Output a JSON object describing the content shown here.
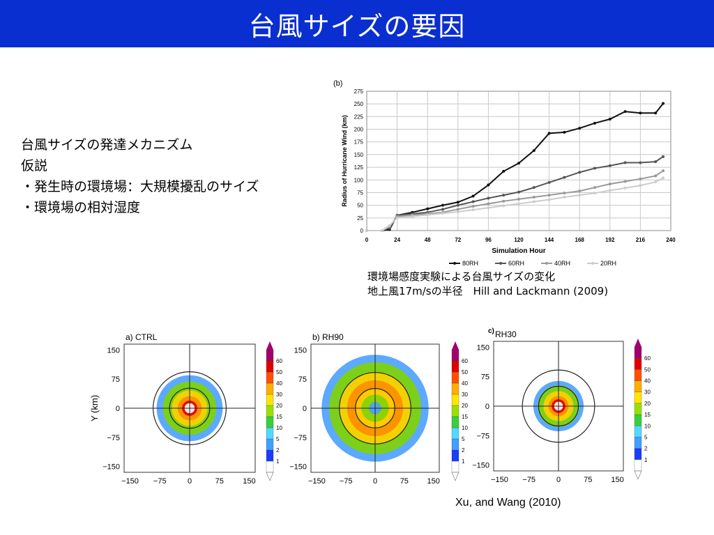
{
  "title": "台風サイズの要因",
  "bullets": [
    "台風サイズの発達メカニズム",
    "仮説",
    "・発生時の環境場：大規模擾乱のサイズ",
    "・環境場の相対湿度"
  ],
  "caption_lines": [
    "環境場感度実験による台風サイズの変化",
    "地上風17m/sの半径　Hill and Lackmann (2009)"
  ],
  "credit": "Xu, and Wang  (2010)",
  "chart_data": [
    {
      "type": "line",
      "panel_label": "(b)",
      "title": "",
      "xlabel": "Simulation Hour",
      "ylabel": "Radius of Hurricane Wind (km)",
      "xlim": [
        0,
        240
      ],
      "ylim": [
        0,
        275
      ],
      "xticks": [
        0,
        24,
        48,
        72,
        96,
        120,
        144,
        168,
        192,
        216,
        240
      ],
      "yticks": [
        0,
        25,
        50,
        75,
        100,
        125,
        150,
        175,
        200,
        225,
        250,
        275
      ],
      "grid": true,
      "legend_position": "bottom",
      "x": [
        0,
        12,
        18,
        24,
        36,
        48,
        60,
        72,
        84,
        96,
        108,
        120,
        132,
        144,
        156,
        168,
        180,
        192,
        204,
        216,
        228,
        234
      ],
      "series": [
        {
          "name": "80RH",
          "color": "#111111",
          "values": [
            0,
            0,
            2,
            30,
            36,
            43,
            50,
            56,
            68,
            90,
            117,
            133,
            158,
            192,
            194,
            202,
            212,
            220,
            235,
            232,
            232,
            251
          ]
        },
        {
          "name": "60RH",
          "color": "#555555",
          "values": [
            0,
            0,
            5,
            30,
            33,
            36,
            42,
            50,
            57,
            64,
            70,
            76,
            85,
            95,
            105,
            115,
            123,
            128,
            134,
            134,
            136,
            146
          ]
        },
        {
          "name": "40RH",
          "color": "#999999",
          "values": [
            0,
            0,
            8,
            28,
            31,
            33,
            36,
            42,
            48,
            53,
            58,
            62,
            66,
            70,
            74,
            78,
            85,
            92,
            97,
            102,
            108,
            118
          ]
        },
        {
          "name": "20RH",
          "color": "#cccccc",
          "values": [
            0,
            0,
            10,
            25,
            28,
            31,
            34,
            37,
            41,
            45,
            49,
            53,
            57,
            61,
            66,
            70,
            74,
            79,
            84,
            89,
            96,
            104
          ]
        }
      ]
    },
    {
      "type": "heatmap",
      "panels": [
        {
          "label": "a)  CTRL",
          "rings": [
            [
              "#ffffff",
              8
            ],
            [
              "#e00000",
              12
            ],
            [
              "#ff8c00",
              19
            ],
            [
              "#ffd000",
              28
            ],
            [
              "#7fd400",
              42
            ],
            [
              "#4aa0ff",
              52
            ]
          ]
        },
        {
          "label": "b)  RH90",
          "rings": [
            [
              "#4aa0ff",
              10
            ],
            [
              "#7fd400",
              22
            ],
            [
              "#ffd000",
              32
            ],
            [
              "#ff8c00",
              45
            ],
            [
              "#ffd000",
              58
            ],
            [
              "#7fd400",
              74
            ],
            [
              "#4aa0ff",
              86
            ]
          ]
        },
        {
          "label": "RH30",
          "panel_mark": "c)",
          "rings": [
            [
              "#ffffff",
              7
            ],
            [
              "#e00000",
              11
            ],
            [
              "#ff8c00",
              16
            ],
            [
              "#ffd000",
              24
            ],
            [
              "#7fd400",
              33
            ],
            [
              "#4aa0ff",
              40
            ]
          ]
        }
      ],
      "ylabel": "Y (km)",
      "ticks": [
        -150,
        -75,
        0,
        75,
        150
      ],
      "colorbar_ticks": [
        "1",
        "2",
        "5",
        "10",
        "15",
        "20",
        "30",
        "40",
        "50",
        "60"
      ],
      "colorbar_colors": [
        "#ffffff",
        "#1a3cff",
        "#3fa0ff",
        "#53d9ff",
        "#36d03a",
        "#9be000",
        "#ffe600",
        "#ffae00",
        "#ff5000",
        "#e00000",
        "#a0006e"
      ]
    }
  ]
}
